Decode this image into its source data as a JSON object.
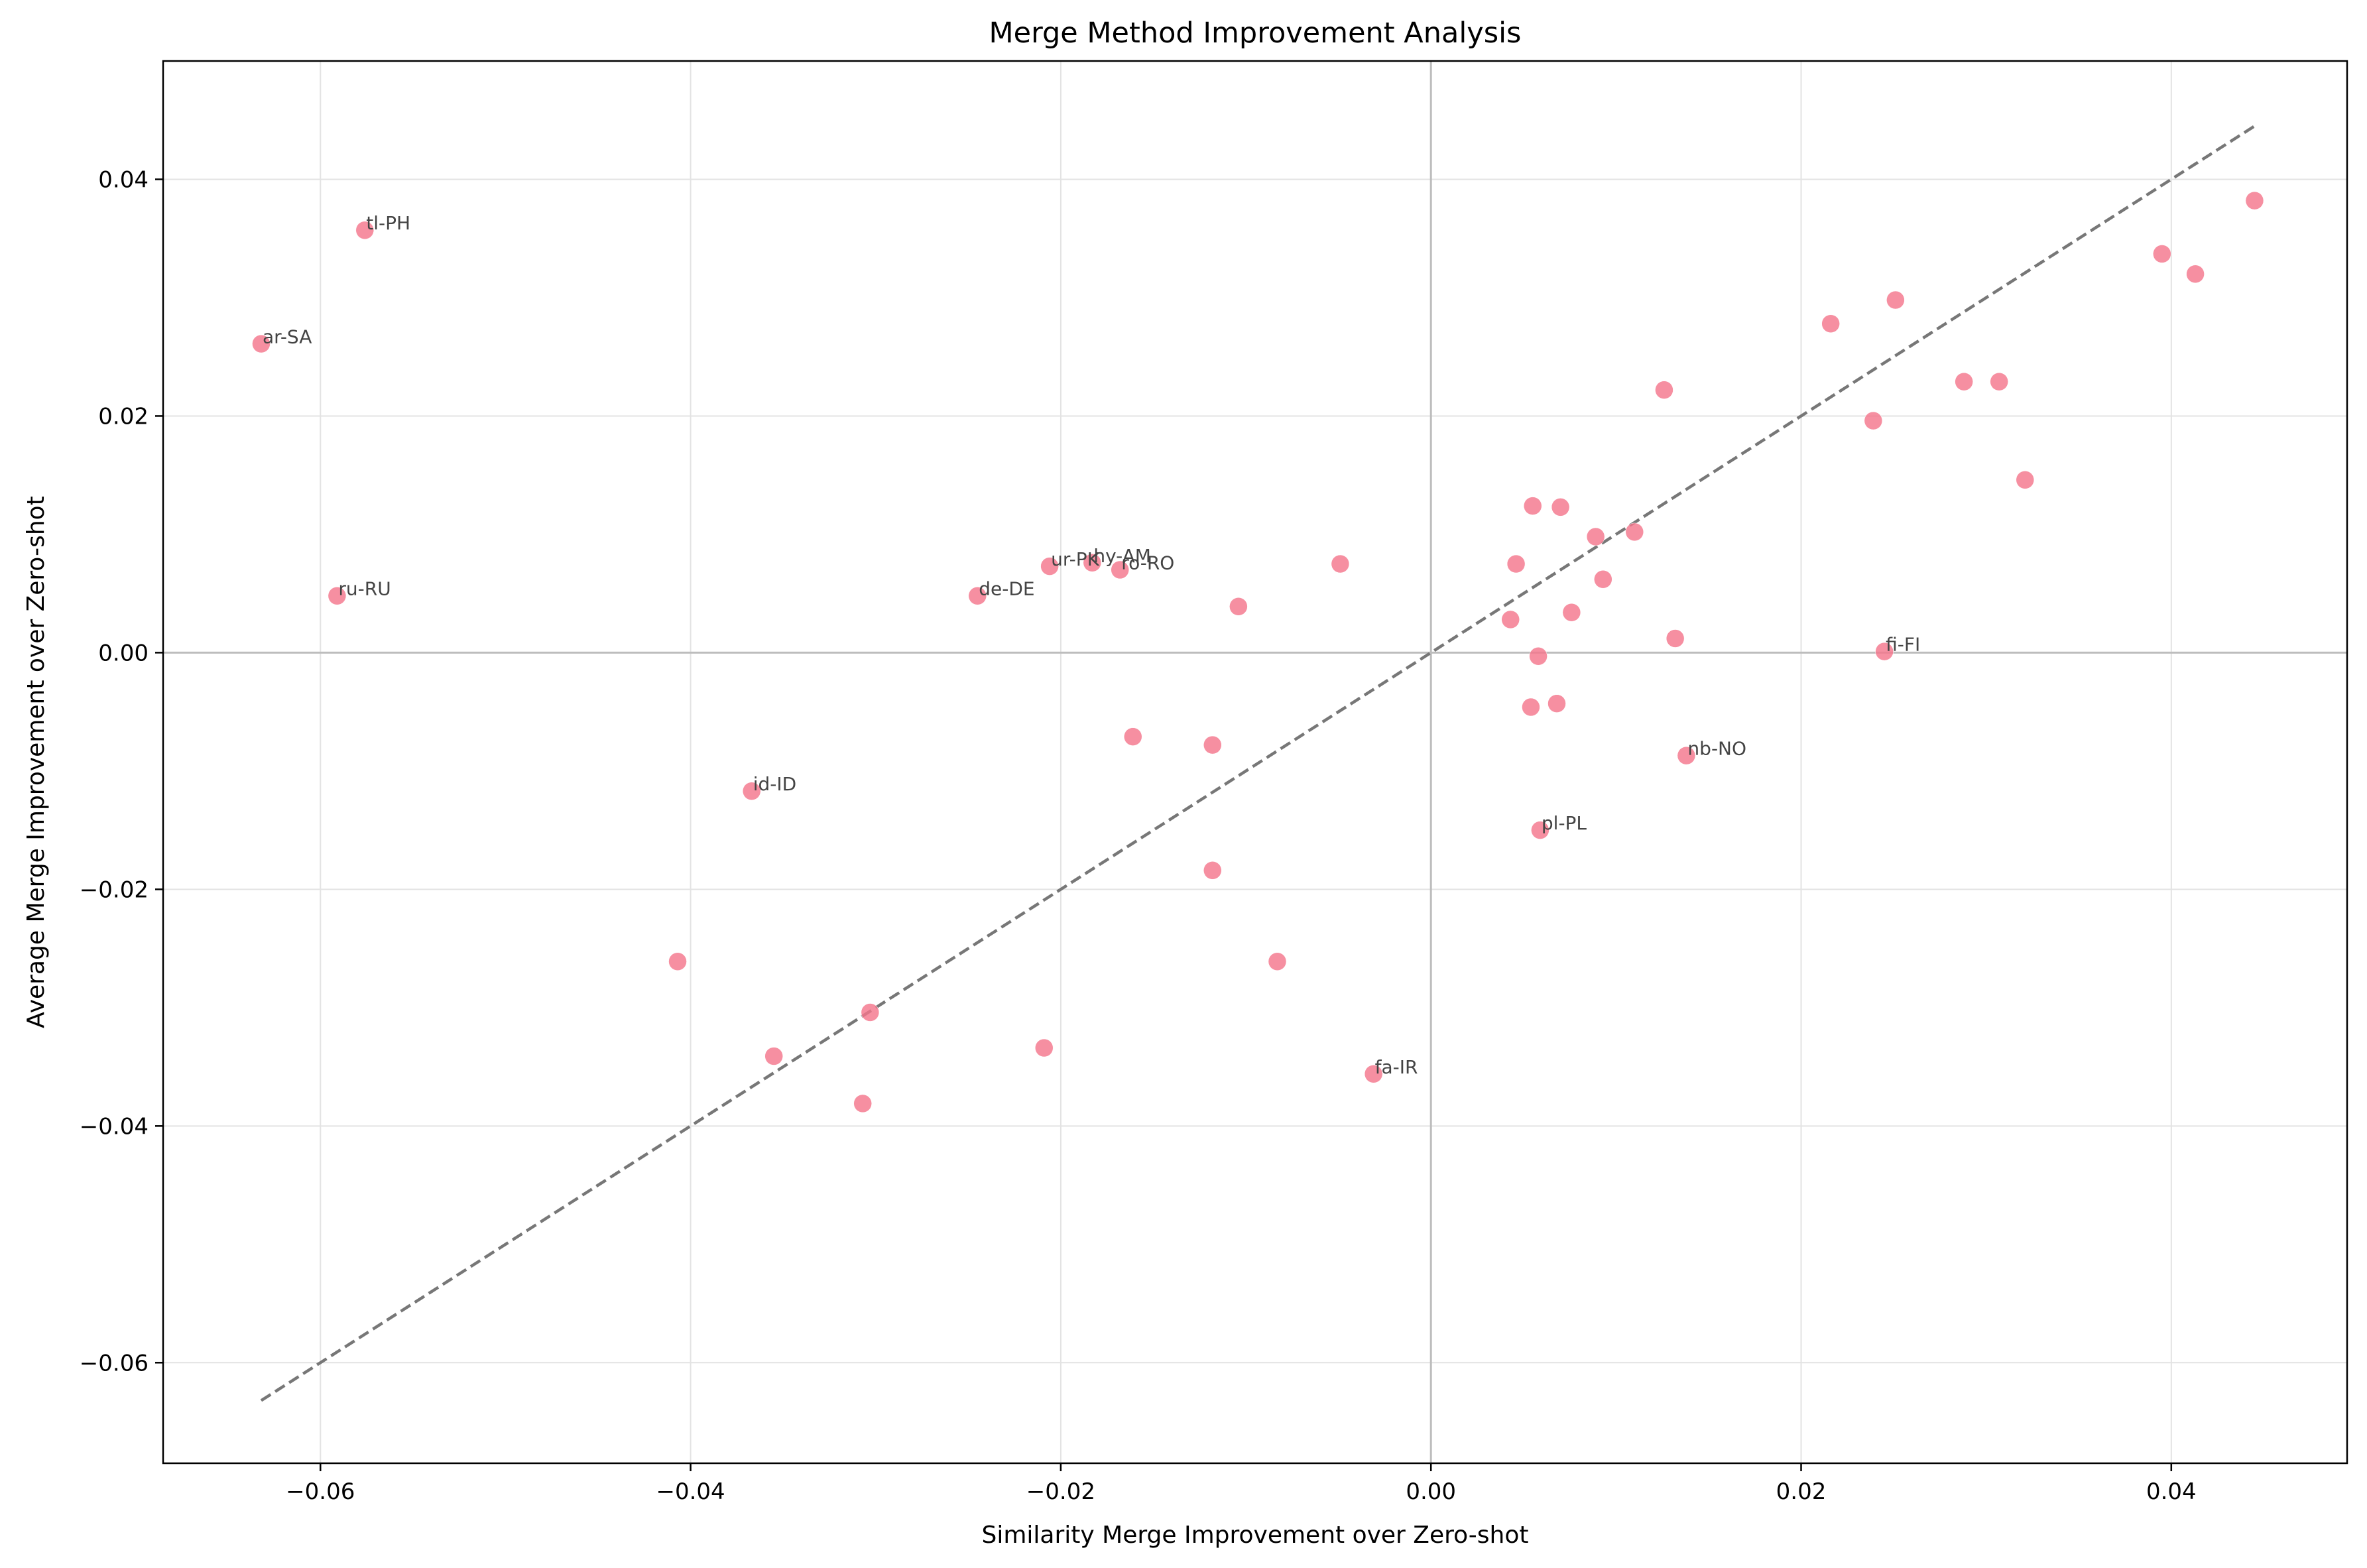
{
  "chart_data": {
    "type": "scatter",
    "title": "Merge Method Improvement Analysis",
    "xlabel": "Similarity Merge Improvement over Zero-shot",
    "ylabel": "Average Merge Improvement over Zero-shot",
    "xlim": [
      -0.0685,
      0.0495
    ],
    "ylim": [
      -0.0685,
      0.05
    ],
    "xticks": [
      -0.06,
      -0.04,
      -0.02,
      0.0,
      0.02,
      0.04
    ],
    "yticks": [
      -0.06,
      -0.04,
      -0.02,
      0.0,
      0.02,
      0.04
    ],
    "xtick_labels": [
      "−0.06",
      "−0.04",
      "−0.02",
      "0.00",
      "0.02",
      "0.04"
    ],
    "ytick_labels": [
      "−0.06",
      "−0.04",
      "−0.02",
      "0.00",
      "0.02",
      "0.04"
    ],
    "grid": true,
    "reference_line": {
      "style": "dashed",
      "x": [
        -0.0632,
        0.0445
      ],
      "y": [
        -0.0632,
        0.0445
      ]
    },
    "zero_lines": {
      "x": 0.0,
      "y": 0.0
    },
    "point_color": "#f4768c",
    "points": [
      {
        "x": -0.0632,
        "y": 0.0261,
        "label": "ar-SA"
      },
      {
        "x": -0.0576,
        "y": 0.0357,
        "label": "tl-PH"
      },
      {
        "x": -0.0591,
        "y": 0.0048,
        "label": "ru-RU"
      },
      {
        "x": -0.0367,
        "y": -0.0117,
        "label": "id-ID"
      },
      {
        "x": -0.0245,
        "y": 0.0048,
        "label": "de-DE"
      },
      {
        "x": -0.0206,
        "y": 0.0073,
        "label": "ur-PK"
      },
      {
        "x": -0.0183,
        "y": 0.0076,
        "label": "hy-AM"
      },
      {
        "x": -0.0168,
        "y": 0.007,
        "label": "ro-RO"
      },
      {
        "x": -0.0031,
        "y": -0.0356,
        "label": "fa-IR"
      },
      {
        "x": 0.0059,
        "y": -0.015,
        "label": "pl-PL"
      },
      {
        "x": 0.0138,
        "y": -0.0087,
        "label": "nb-NO"
      },
      {
        "x": 0.0245,
        "y": 0.0001,
        "label": "fi-FI"
      },
      {
        "x": -0.0407,
        "y": -0.0261,
        "label": ""
      },
      {
        "x": -0.0355,
        "y": -0.0341,
        "label": ""
      },
      {
        "x": -0.0303,
        "y": -0.0304,
        "label": ""
      },
      {
        "x": -0.0307,
        "y": -0.0381,
        "label": ""
      },
      {
        "x": -0.0209,
        "y": -0.0334,
        "label": ""
      },
      {
        "x": -0.0161,
        "y": -0.0071,
        "label": ""
      },
      {
        "x": -0.0118,
        "y": -0.0078,
        "label": ""
      },
      {
        "x": -0.0118,
        "y": -0.0184,
        "label": ""
      },
      {
        "x": -0.0104,
        "y": 0.0039,
        "label": ""
      },
      {
        "x": -0.0083,
        "y": -0.0261,
        "label": ""
      },
      {
        "x": -0.0049,
        "y": 0.0075,
        "label": ""
      },
      {
        "x": 0.0043,
        "y": 0.0028,
        "label": ""
      },
      {
        "x": 0.0046,
        "y": 0.0075,
        "label": ""
      },
      {
        "x": 0.0054,
        "y": -0.0046,
        "label": ""
      },
      {
        "x": 0.0055,
        "y": 0.0124,
        "label": ""
      },
      {
        "x": 0.0058,
        "y": -0.0003,
        "label": ""
      },
      {
        "x": 0.0068,
        "y": -0.0043,
        "label": ""
      },
      {
        "x": 0.007,
        "y": 0.0123,
        "label": ""
      },
      {
        "x": 0.0076,
        "y": 0.0034,
        "label": ""
      },
      {
        "x": 0.0089,
        "y": 0.0098,
        "label": ""
      },
      {
        "x": 0.0093,
        "y": 0.0062,
        "label": ""
      },
      {
        "x": 0.011,
        "y": 0.0102,
        "label": ""
      },
      {
        "x": 0.0126,
        "y": 0.0222,
        "label": ""
      },
      {
        "x": 0.0132,
        "y": 0.0012,
        "label": ""
      },
      {
        "x": 0.0216,
        "y": 0.0278,
        "label": ""
      },
      {
        "x": 0.0239,
        "y": 0.0196,
        "label": ""
      },
      {
        "x": 0.0251,
        "y": 0.0298,
        "label": ""
      },
      {
        "x": 0.0288,
        "y": 0.0229,
        "label": ""
      },
      {
        "x": 0.0307,
        "y": 0.0229,
        "label": ""
      },
      {
        "x": 0.0321,
        "y": 0.0146,
        "label": ""
      },
      {
        "x": 0.0395,
        "y": 0.0337,
        "label": ""
      },
      {
        "x": 0.0413,
        "y": 0.032,
        "label": ""
      },
      {
        "x": 0.0445,
        "y": 0.0382,
        "label": ""
      }
    ]
  }
}
